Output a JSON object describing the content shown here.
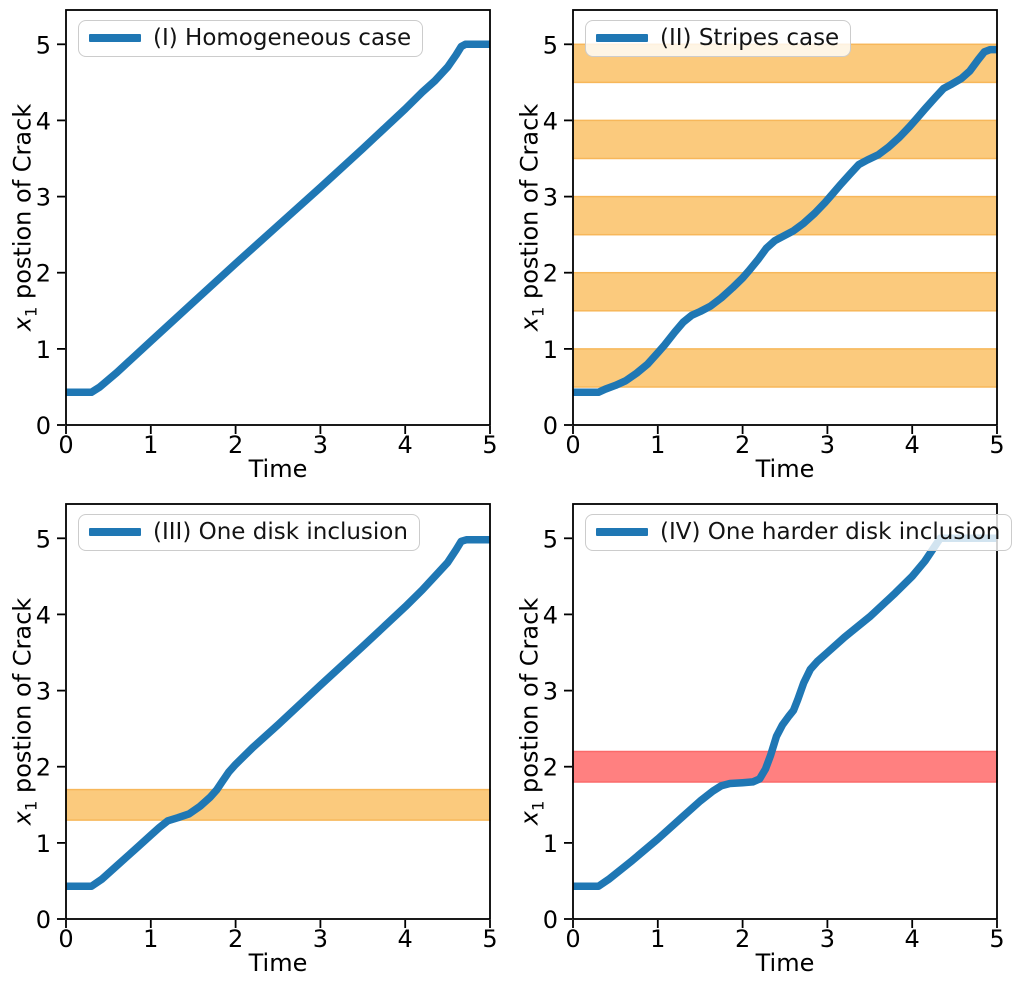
{
  "figure": {
    "background": "#ffffff",
    "rows": 2,
    "cols": 2
  },
  "style": {
    "line_color": "#1f77b4",
    "orange_band_fill": "#fbca7d",
    "orange_band_edge": "#f7b75a",
    "red_band_fill": "#ff8080",
    "red_band_edge": "#fa6a6a",
    "legend_border": "#cccccc",
    "spine_color": "#000000"
  },
  "chart_data": [
    {
      "type": "line",
      "panel_label": "I",
      "legend": "(I) Homogeneous case",
      "legend_position": "upper left",
      "xlabel": "Time",
      "ylabel": "x1 postion of Crack",
      "ylabel_var": "x",
      "ylabel_sub": "1",
      "ylabel_rest": " postion of Crack",
      "xlim": [
        0,
        5
      ],
      "ylim": [
        0,
        5.45
      ],
      "x_ticks": [
        0,
        1,
        2,
        3,
        4,
        5
      ],
      "y_ticks": [
        0,
        1,
        2,
        3,
        4,
        5
      ],
      "grid": false,
      "bands": [],
      "series": [
        {
          "name": "(I) Homogeneous case",
          "points": [
            [
              0,
              0.43
            ],
            [
              0.3,
              0.43
            ],
            [
              0.4,
              0.5
            ],
            [
              0.6,
              0.69
            ],
            [
              1,
              1.1
            ],
            [
              1.5,
              1.61
            ],
            [
              2,
              2.12
            ],
            [
              2.5,
              2.62
            ],
            [
              3,
              3.12
            ],
            [
              3.5,
              3.63
            ],
            [
              4,
              4.15
            ],
            [
              4.2,
              4.37
            ],
            [
              4.35,
              4.52
            ],
            [
              4.5,
              4.7
            ],
            [
              4.6,
              4.86
            ],
            [
              4.66,
              4.97
            ],
            [
              4.71,
              5.0
            ],
            [
              5,
              5.0
            ]
          ]
        }
      ]
    },
    {
      "type": "line",
      "panel_label": "II",
      "legend": "(II) Stripes case",
      "legend_position": "upper left",
      "xlabel": "Time",
      "ylabel": "x1 postion of Crack",
      "ylabel_var": "x",
      "ylabel_sub": "1",
      "ylabel_rest": " postion of Crack",
      "xlim": [
        0,
        5
      ],
      "ylim": [
        0,
        5.45
      ],
      "x_ticks": [
        0,
        1,
        2,
        3,
        4,
        5
      ],
      "y_ticks": [
        0,
        1,
        2,
        3,
        4,
        5
      ],
      "grid": false,
      "bands": [
        {
          "from": 0.5,
          "to": 1.0,
          "fill": "#fbca7d",
          "edge": "#f7b75a"
        },
        {
          "from": 1.5,
          "to": 2.0,
          "fill": "#fbca7d",
          "edge": "#f7b75a"
        },
        {
          "from": 2.5,
          "to": 3.0,
          "fill": "#fbca7d",
          "edge": "#f7b75a"
        },
        {
          "from": 3.5,
          "to": 4.0,
          "fill": "#fbca7d",
          "edge": "#f7b75a"
        },
        {
          "from": 4.5,
          "to": 5.0,
          "fill": "#fbca7d",
          "edge": "#f7b75a"
        }
      ],
      "series": [
        {
          "name": "(II) Stripes case",
          "points": [
            [
              0,
              0.43
            ],
            [
              0.3,
              0.43
            ],
            [
              0.38,
              0.47
            ],
            [
              0.5,
              0.52
            ],
            [
              0.62,
              0.58
            ],
            [
              0.75,
              0.68
            ],
            [
              0.88,
              0.8
            ],
            [
              1.0,
              0.95
            ],
            [
              1.08,
              1.05
            ],
            [
              1.2,
              1.22
            ],
            [
              1.3,
              1.35
            ],
            [
              1.4,
              1.44
            ],
            [
              1.5,
              1.49
            ],
            [
              1.62,
              1.56
            ],
            [
              1.75,
              1.67
            ],
            [
              1.88,
              1.8
            ],
            [
              2.0,
              1.93
            ],
            [
              2.07,
              2.02
            ],
            [
              2.18,
              2.17
            ],
            [
              2.28,
              2.32
            ],
            [
              2.38,
              2.42
            ],
            [
              2.48,
              2.48
            ],
            [
              2.6,
              2.55
            ],
            [
              2.72,
              2.65
            ],
            [
              2.85,
              2.78
            ],
            [
              2.97,
              2.92
            ],
            [
              3.05,
              3.02
            ],
            [
              3.15,
              3.15
            ],
            [
              3.27,
              3.3
            ],
            [
              3.37,
              3.42
            ],
            [
              3.47,
              3.48
            ],
            [
              3.6,
              3.55
            ],
            [
              3.72,
              3.65
            ],
            [
              3.85,
              3.78
            ],
            [
              3.97,
              3.92
            ],
            [
              4.05,
              4.02
            ],
            [
              4.15,
              4.15
            ],
            [
              4.27,
              4.3
            ],
            [
              4.37,
              4.42
            ],
            [
              4.47,
              4.48
            ],
            [
              4.58,
              4.55
            ],
            [
              4.68,
              4.65
            ],
            [
              4.78,
              4.8
            ],
            [
              4.85,
              4.9
            ],
            [
              4.92,
              4.93
            ],
            [
              5,
              4.93
            ]
          ]
        }
      ]
    },
    {
      "type": "line",
      "panel_label": "III",
      "legend": "(III) One disk inclusion",
      "legend_position": "upper left",
      "xlabel": "Time",
      "ylabel": "x1 postion of Crack",
      "ylabel_var": "x",
      "ylabel_sub": "1",
      "ylabel_rest": " postion of Crack",
      "xlim": [
        0,
        5
      ],
      "ylim": [
        0,
        5.45
      ],
      "x_ticks": [
        0,
        1,
        2,
        3,
        4,
        5
      ],
      "y_ticks": [
        0,
        1,
        2,
        3,
        4,
        5
      ],
      "grid": false,
      "bands": [
        {
          "from": 1.3,
          "to": 1.7,
          "fill": "#fbca7d",
          "edge": "#f7b75a"
        }
      ],
      "series": [
        {
          "name": "(III) One disk inclusion",
          "points": [
            [
              0,
              0.43
            ],
            [
              0.3,
              0.43
            ],
            [
              0.42,
              0.52
            ],
            [
              0.6,
              0.7
            ],
            [
              0.85,
              0.95
            ],
            [
              1.0,
              1.1
            ],
            [
              1.1,
              1.2
            ],
            [
              1.2,
              1.29
            ],
            [
              1.32,
              1.33
            ],
            [
              1.45,
              1.38
            ],
            [
              1.58,
              1.48
            ],
            [
              1.7,
              1.6
            ],
            [
              1.78,
              1.7
            ],
            [
              1.84,
              1.8
            ],
            [
              1.92,
              1.93
            ],
            [
              2.0,
              2.03
            ],
            [
              2.2,
              2.25
            ],
            [
              2.5,
              2.55
            ],
            [
              3.0,
              3.07
            ],
            [
              3.5,
              3.58
            ],
            [
              4.0,
              4.1
            ],
            [
              4.2,
              4.32
            ],
            [
              4.35,
              4.5
            ],
            [
              4.5,
              4.68
            ],
            [
              4.6,
              4.85
            ],
            [
              4.66,
              4.96
            ],
            [
              4.72,
              4.98
            ],
            [
              5,
              4.98
            ]
          ]
        }
      ]
    },
    {
      "type": "line",
      "panel_label": "IV",
      "legend": "(IV) One harder disk inclusion",
      "legend_position": "upper left",
      "xlabel": "Time",
      "ylabel": "x1 postion of Crack",
      "ylabel_var": "x",
      "ylabel_sub": "1",
      "ylabel_rest": " postion of Crack",
      "xlim": [
        0,
        5
      ],
      "ylim": [
        0,
        5.45
      ],
      "x_ticks": [
        0,
        1,
        2,
        3,
        4,
        5
      ],
      "y_ticks": [
        0,
        1,
        2,
        3,
        4,
        5
      ],
      "grid": false,
      "bands": [
        {
          "from": 1.8,
          "to": 2.2,
          "fill": "#ff8080",
          "edge": "#fa6a6a"
        }
      ],
      "series": [
        {
          "name": "(IV) One harder disk inclusion",
          "points": [
            [
              0,
              0.43
            ],
            [
              0.3,
              0.43
            ],
            [
              0.42,
              0.52
            ],
            [
              0.7,
              0.77
            ],
            [
              1.0,
              1.05
            ],
            [
              1.3,
              1.35
            ],
            [
              1.5,
              1.55
            ],
            [
              1.65,
              1.68
            ],
            [
              1.75,
              1.75
            ],
            [
              1.85,
              1.78
            ],
            [
              2.0,
              1.79
            ],
            [
              2.12,
              1.8
            ],
            [
              2.2,
              1.84
            ],
            [
              2.27,
              1.97
            ],
            [
              2.33,
              2.15
            ],
            [
              2.4,
              2.4
            ],
            [
              2.47,
              2.55
            ],
            [
              2.55,
              2.67
            ],
            [
              2.6,
              2.74
            ],
            [
              2.65,
              2.88
            ],
            [
              2.72,
              3.1
            ],
            [
              2.8,
              3.28
            ],
            [
              2.88,
              3.38
            ],
            [
              3.0,
              3.5
            ],
            [
              3.2,
              3.7
            ],
            [
              3.5,
              3.97
            ],
            [
              3.8,
              4.28
            ],
            [
              4.0,
              4.5
            ],
            [
              4.15,
              4.7
            ],
            [
              4.27,
              4.9
            ],
            [
              4.33,
              5.0
            ],
            [
              5,
              5.0
            ]
          ]
        }
      ]
    }
  ]
}
